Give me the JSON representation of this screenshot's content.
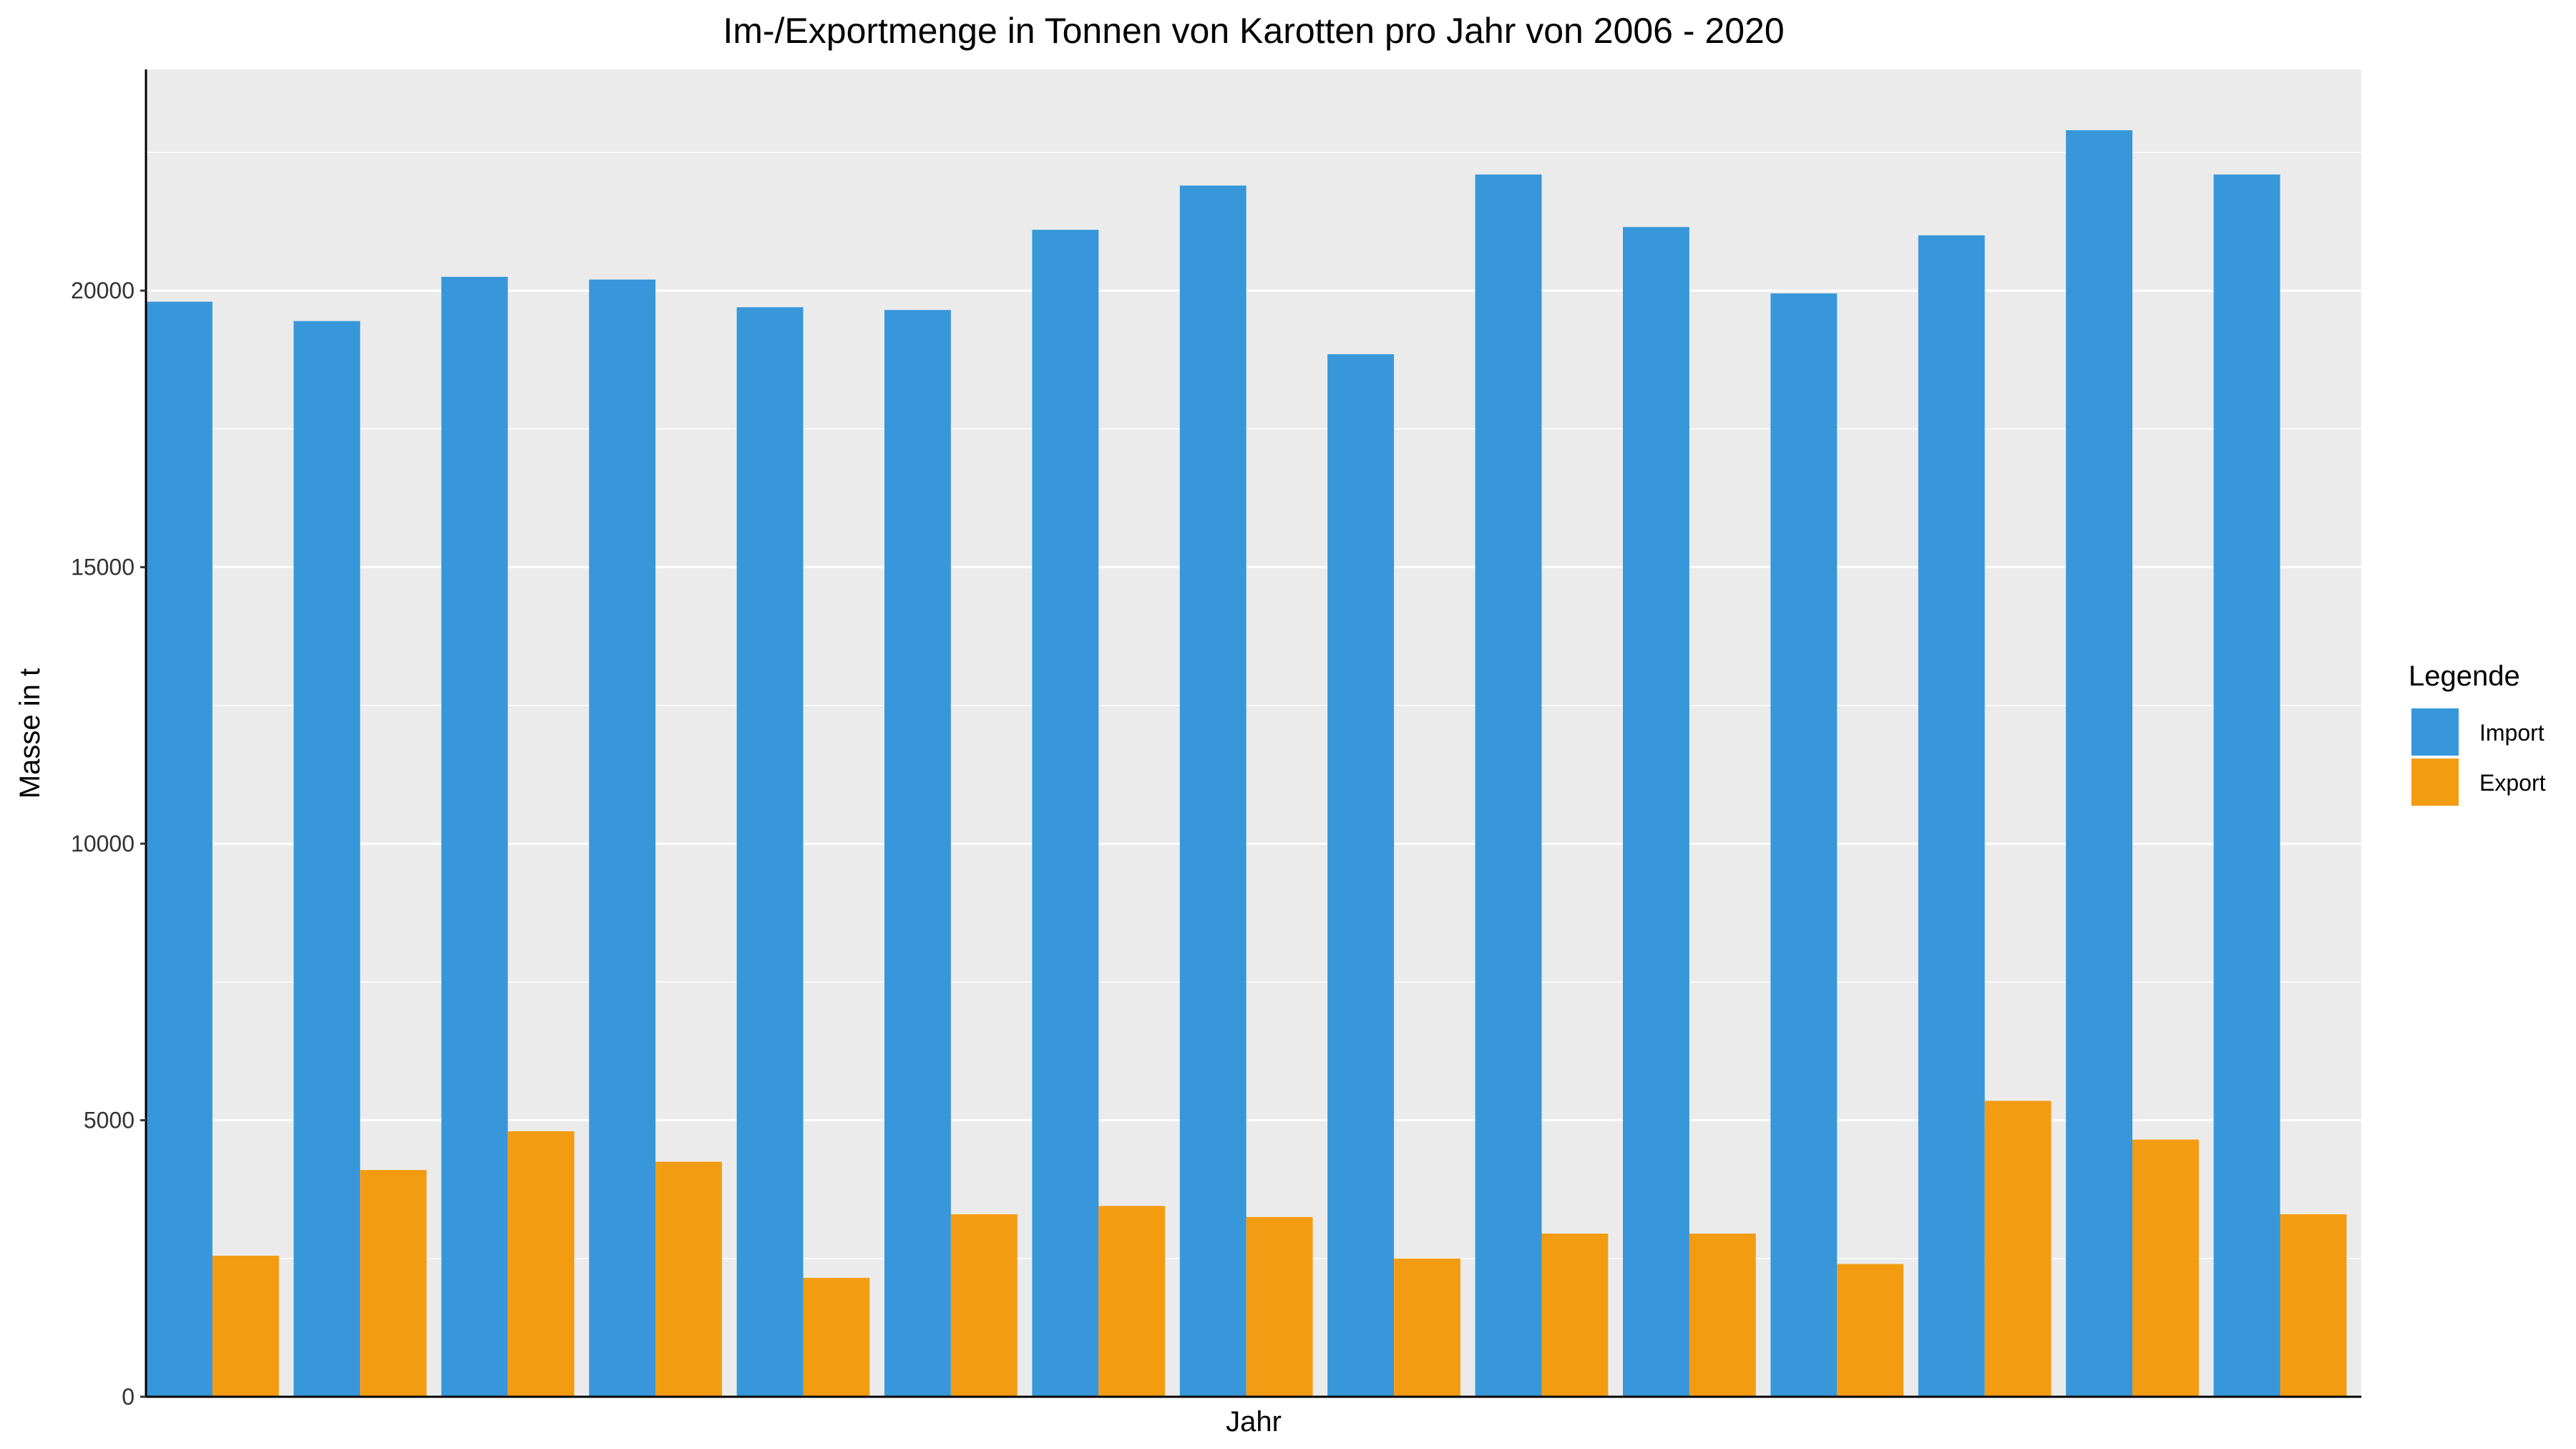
{
  "chart_data": {
    "type": "bar",
    "title": "Im-/Exportmenge in Tonnen von Karotten pro Jahr von 2006 - 2020",
    "xlabel": "Jahr",
    "ylabel": "Masse in t",
    "ylim": [
      0,
      24000
    ],
    "yticks": [
      "0",
      "5000",
      "10000",
      "15000",
      "20000"
    ],
    "grid": true,
    "legend": {
      "title": "Legende",
      "position": "right"
    },
    "series": [
      {
        "name": "Import",
        "color": "#3797DA",
        "values": [
          19800,
          19450,
          20250,
          20200,
          19700,
          19650,
          21100,
          21900,
          18850,
          22100,
          21150,
          19950,
          21000,
          22900,
          22100
        ]
      },
      {
        "name": "Export",
        "color": "#F39C12",
        "values": [
          2550,
          4100,
          4800,
          4250,
          2150,
          3300,
          3450,
          3250,
          2500,
          2950,
          2950,
          2400,
          5350,
          4650,
          3300
        ]
      }
    ]
  }
}
